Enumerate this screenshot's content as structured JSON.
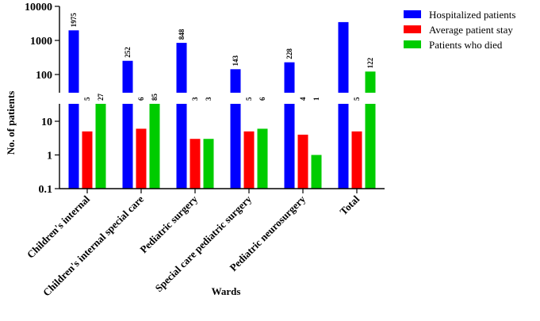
{
  "chart_data": {
    "type": "bar",
    "xlabel": "Wards",
    "ylabel": "No. of patients",
    "scale": "log",
    "ylim": [
      0.1,
      10000
    ],
    "axis_break": "between 10 and 100",
    "yticks": [
      "0.1",
      "1",
      "10",
      "100",
      "1000",
      "10000"
    ],
    "categories": [
      "Children's internal",
      "Children's internal special care",
      "Pediatric surgery",
      "Special care pediatric surgery",
      "Pediatric neurosurgery",
      "Total"
    ],
    "series": [
      {
        "name": "Hospitalized patients",
        "color": "#0000ff",
        "values": [
          1975,
          252,
          848,
          143,
          228,
          3446
        ],
        "labels": [
          "1975",
          "252",
          "848",
          "143",
          "228",
          ""
        ]
      },
      {
        "name": "Average patient stay",
        "color": "#ff0000",
        "values": [
          5,
          6,
          3,
          5,
          4,
          5
        ],
        "labels": [
          "5",
          "6",
          "3",
          "5",
          "4",
          "5"
        ]
      },
      {
        "name": "Patients who died",
        "color": "#00cc00",
        "values": [
          27,
          85,
          3,
          6,
          1,
          122
        ],
        "labels": [
          "27",
          "85",
          "3",
          "6",
          "1",
          "122"
        ]
      }
    ],
    "legend_position": "top-right",
    "grid": false
  }
}
